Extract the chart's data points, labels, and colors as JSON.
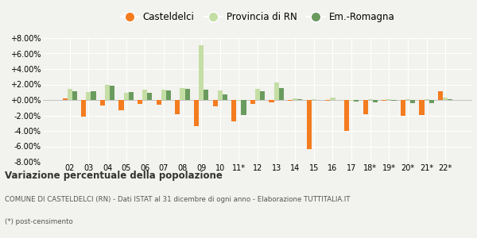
{
  "categories": [
    "02",
    "03",
    "04",
    "05",
    "06",
    "07",
    "08",
    "09",
    "10",
    "11*",
    "12",
    "13",
    "14",
    "15",
    "16",
    "17",
    "18*",
    "19*",
    "20*",
    "21*",
    "22*"
  ],
  "casteldelci": [
    0.2,
    -2.2,
    -0.7,
    -1.3,
    -0.5,
    -0.6,
    -1.8,
    -3.4,
    -0.8,
    -2.8,
    -0.5,
    -0.3,
    -0.1,
    -6.4,
    -0.1,
    -4.0,
    -1.8,
    -0.1,
    -2.0,
    -1.9,
    1.1
  ],
  "provincia_rn": [
    1.4,
    1.0,
    2.0,
    0.9,
    1.3,
    1.3,
    1.5,
    7.1,
    1.2,
    -0.1,
    1.4,
    2.3,
    0.2,
    0.1,
    0.3,
    -0.1,
    0.1,
    0.1,
    0.1,
    0.1,
    0.3
  ],
  "emilia_romagna": [
    1.1,
    1.1,
    1.8,
    1.0,
    0.9,
    1.2,
    1.4,
    1.3,
    0.7,
    -1.9,
    1.1,
    1.5,
    0.1,
    0.0,
    0.0,
    -0.2,
    -0.3,
    -0.1,
    -0.4,
    -0.4,
    0.1
  ],
  "color_casteldelci": "#f47c20",
  "color_provincia": "#c5dea5",
  "color_emilia": "#6a9b5e",
  "ylim": [
    -8.0,
    8.0
  ],
  "yticks": [
    -8.0,
    -6.0,
    -4.0,
    -2.0,
    0.0,
    2.0,
    4.0,
    6.0,
    8.0
  ],
  "title": "Variazione percentuale della popolazione",
  "subtitle": "COMUNE DI CASTELDELCI (RN) - Dati ISTAT al 31 dicembre di ogni anno - Elaborazione TUTTITALIA.IT",
  "footnote": "(*) post-censimento",
  "bg_color": "#f2f2ee",
  "legend_labels": [
    "Casteldelci",
    "Provincia di RN",
    "Em.-Romagna"
  ]
}
